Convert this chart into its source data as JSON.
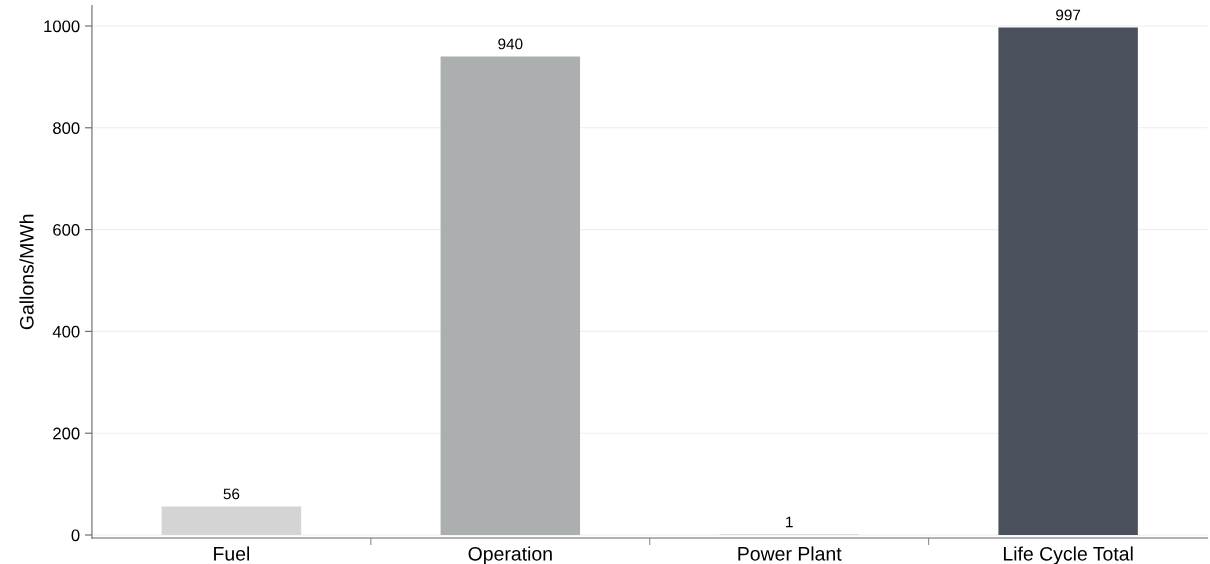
{
  "chart_data": {
    "type": "bar",
    "ylabel": "Gallons/MWh",
    "categories": [
      "Fuel",
      "Operation",
      "Power Plant",
      "Life Cycle Total"
    ],
    "values": [
      56,
      940,
      1,
      997
    ],
    "colors": [
      "#d4d4d4",
      "#abafb0",
      "#c4c4c4",
      "#4a505c"
    ],
    "ylim": [
      -6,
      1040
    ],
    "yticks": [
      0,
      200,
      400,
      600,
      800,
      1000
    ],
    "grid": "y",
    "data_labels": true
  }
}
